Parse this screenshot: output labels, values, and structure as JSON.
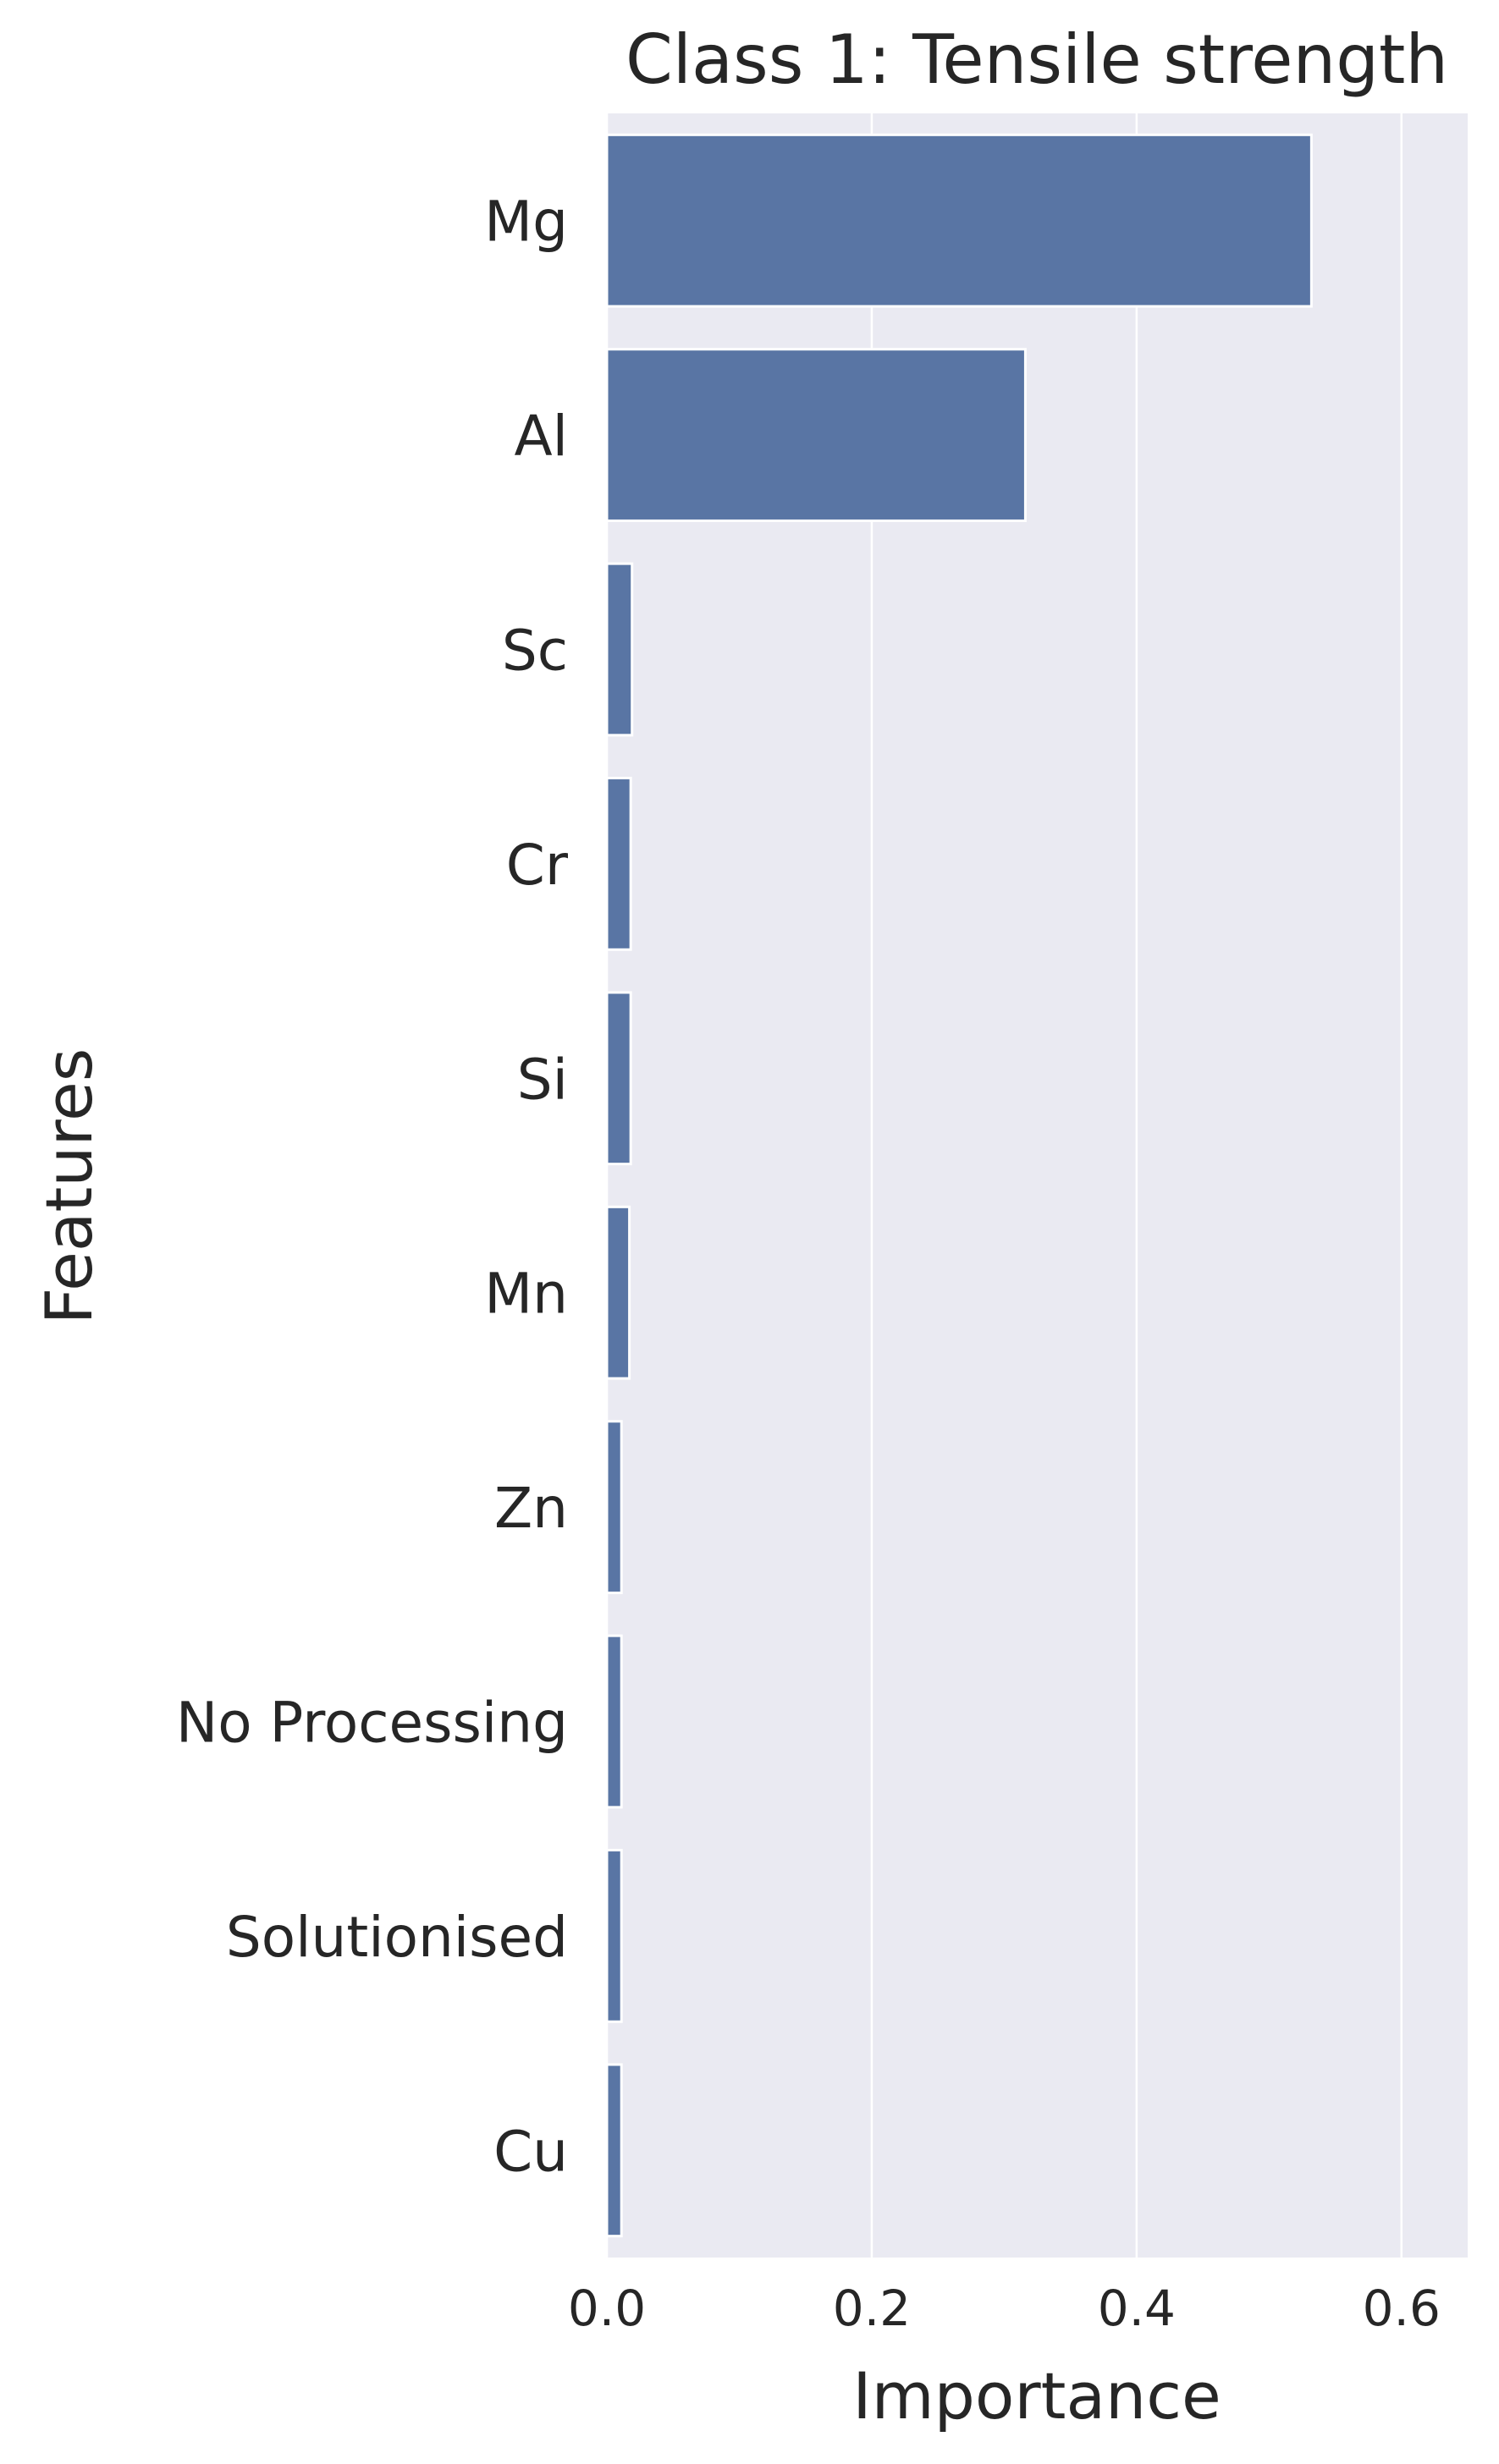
{
  "chart_data": {
    "type": "bar",
    "orientation": "horizontal",
    "title": "Class 1: Tensile strength",
    "xlabel": "Importance",
    "ylabel": "Features",
    "categories": [
      "Mg",
      "Al",
      "Sc",
      "Cr",
      "Si",
      "Mn",
      "Zn",
      "No Processing",
      "Solutionised",
      "Cu"
    ],
    "values": [
      0.532,
      0.316,
      0.019,
      0.018,
      0.018,
      0.017,
      0.011,
      0.011,
      0.011,
      0.011
    ],
    "xlim": [
      0,
      0.65
    ],
    "xticks": [
      0.0,
      0.2,
      0.4,
      0.6
    ],
    "xtick_labels": [
      "0.0",
      "0.2",
      "0.4",
      "0.6"
    ],
    "grid": true,
    "colors": {
      "bar": "#5975a4",
      "plot_background": "#eaeaf2",
      "grid": "#ffffff",
      "text": "#262626"
    }
  }
}
